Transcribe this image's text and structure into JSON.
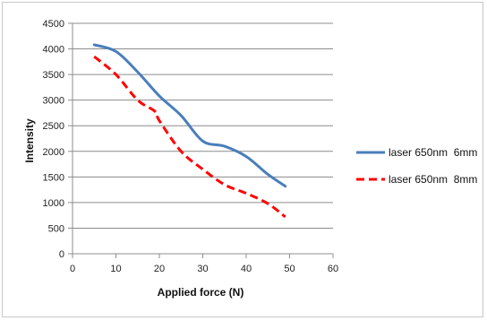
{
  "chart_data": {
    "type": "line",
    "xlabel": "Applied force (N)",
    "ylabel": "Intensity",
    "xlim": [
      0,
      60
    ],
    "ylim": [
      0,
      4500
    ],
    "xticks": [
      0,
      10,
      20,
      30,
      40,
      50,
      60
    ],
    "yticks": [
      0,
      500,
      1000,
      1500,
      2000,
      2500,
      3000,
      3500,
      4000,
      4500
    ],
    "grid": "horizontal",
    "legend_position": "right",
    "series": [
      {
        "name": "laser 650nm  6mm",
        "color": "#4a7ebb",
        "style": "solid",
        "x": [
          5,
          10,
          15,
          20,
          25,
          30,
          35,
          40,
          45,
          49
        ],
        "y": [
          4080,
          3950,
          3550,
          3080,
          2700,
          2200,
          2100,
          1900,
          1550,
          1320
        ]
      },
      {
        "name": "laser 650nm  8mm",
        "color": "#ff0000",
        "style": "dashed",
        "x": [
          5,
          10,
          15,
          19,
          20,
          25,
          30,
          35,
          40,
          45,
          49
        ],
        "y": [
          3850,
          3500,
          3000,
          2780,
          2600,
          2000,
          1650,
          1350,
          1180,
          980,
          720
        ]
      }
    ]
  }
}
